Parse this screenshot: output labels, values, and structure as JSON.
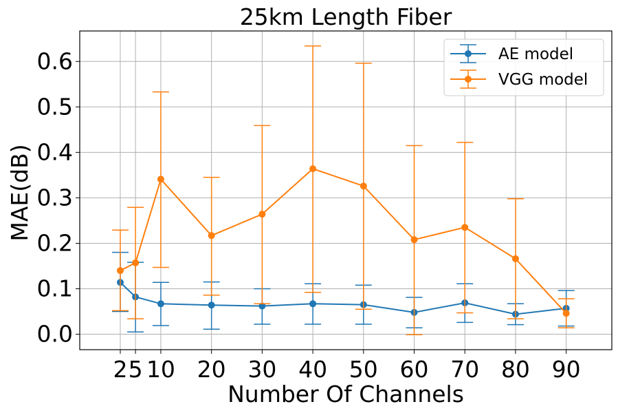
{
  "chart_data": {
    "type": "line",
    "title": "25km Length Fiber",
    "xlabel": "Number Of Channels",
    "ylabel": "MAE(dB)",
    "x": [
      2,
      5,
      10,
      20,
      30,
      40,
      50,
      60,
      70,
      80,
      90
    ],
    "x_tick_labels": [
      "2",
      "5",
      "10",
      "20",
      "30",
      "40",
      "50",
      "60",
      "70",
      "80",
      "90"
    ],
    "y_ticks": [
      "0.0",
      "0.1",
      "0.2",
      "0.3",
      "0.4",
      "0.5",
      "0.6"
    ],
    "xlim": [
      -6,
      99
    ],
    "ylim": [
      -0.034,
      0.667
    ],
    "grid": true,
    "legend_position": "top-right",
    "series": [
      {
        "name": "AE model",
        "color": "#1f77b4",
        "values": [
          0.114,
          0.082,
          0.067,
          0.064,
          0.062,
          0.067,
          0.065,
          0.048,
          0.069,
          0.044,
          0.057
        ],
        "err_low": [
          0.05,
          0.005,
          0.019,
          0.011,
          0.022,
          0.022,
          0.022,
          0.014,
          0.026,
          0.021,
          0.018
        ],
        "err_high": [
          0.18,
          0.158,
          0.114,
          0.115,
          0.1,
          0.111,
          0.108,
          0.081,
          0.111,
          0.067,
          0.096
        ]
      },
      {
        "name": "VGG model",
        "color": "#ff7f0e",
        "values": [
          0.14,
          0.157,
          0.341,
          0.217,
          0.264,
          0.364,
          0.326,
          0.208,
          0.235,
          0.166,
          0.046
        ],
        "err_low": [
          0.052,
          0.034,
          0.147,
          0.086,
          0.067,
          0.092,
          0.055,
          -0.001,
          0.047,
          0.034,
          0.014
        ],
        "err_high": [
          0.229,
          0.279,
          0.533,
          0.345,
          0.459,
          0.634,
          0.596,
          0.415,
          0.422,
          0.298,
          0.078
        ]
      }
    ]
  }
}
